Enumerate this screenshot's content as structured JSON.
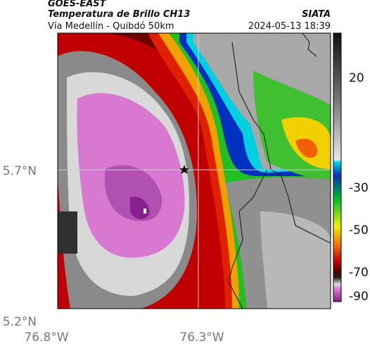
{
  "header": {
    "source": "GOES-EAST",
    "product": "Temperatura de Brillo CH13",
    "organization": "SIATA",
    "region": "Vía Medellín - Quibdó 50km",
    "timestamp": "2024-05-13 18:39"
  },
  "axes": {
    "lat_labels": [
      "5.7°N",
      "5.2°N"
    ],
    "lon_labels": [
      "76.8°W",
      "76.3°W"
    ]
  },
  "colorbar": {
    "tick_labels": [
      "20",
      "-30",
      "-50",
      "-70",
      "-90"
    ]
  }
}
